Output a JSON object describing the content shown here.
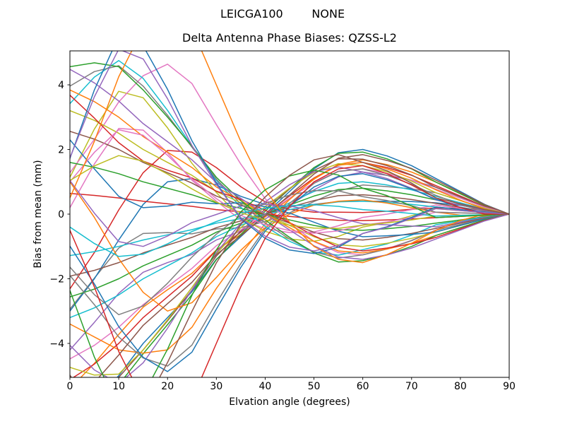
{
  "figure": {
    "suptitle": "LEICGA100        NONE",
    "background": "#ffffff"
  },
  "chart_data": {
    "type": "line",
    "title": "Delta Antenna Phase Biases: QZSS-L2",
    "xlabel": "Elvation angle (degrees)",
    "ylabel": "Bias from mean (mm)",
    "xlim": [
      0,
      90
    ],
    "ylim": [
      -5.05,
      5.05
    ],
    "xticks": [
      0,
      10,
      20,
      30,
      40,
      50,
      60,
      70,
      80,
      90
    ],
    "yticks": [
      -4,
      -2,
      0,
      2,
      4
    ],
    "grid": false,
    "legend": "none",
    "line_width": 1.5,
    "palette": [
      "#1f77b4",
      "#ff7f0e",
      "#2ca02c",
      "#d62728",
      "#9467bd",
      "#8c564b",
      "#e377c2",
      "#7f7f7f",
      "#bcbd22",
      "#17becf"
    ],
    "x": [
      0,
      5,
      10,
      15,
      20,
      25,
      30,
      35,
      40,
      45,
      50,
      55,
      60,
      65,
      70,
      75,
      80,
      85,
      90
    ],
    "series": [
      {
        "color": "#1f77b4",
        "values": [
          -6.4,
          -5.8,
          -5.0,
          -4.0,
          -3.2,
          -2.4,
          -1.4,
          -0.7,
          0,
          0.7,
          1.4,
          1.9,
          2.0,
          1.8,
          1.5,
          1.1,
          0.7,
          0.3,
          0
        ]
      },
      {
        "color": "#ff7f0e",
        "values": [
          -5.4,
          -4.62,
          -3.72,
          -2.88,
          -2.34,
          -1.83,
          -1.11,
          -0.63,
          -0.09,
          0.48,
          1.08,
          1.54,
          1.68,
          1.53,
          1.3,
          0.99,
          0.63,
          0.27,
          0
        ]
      },
      {
        "color": "#2ca02c",
        "values": [
          -6.12,
          -5.82,
          -5.28,
          -4.32,
          -3.42,
          -2.49,
          -1.41,
          -0.63,
          0.09,
          0.78,
          1.44,
          1.88,
          1.92,
          1.71,
          1.4,
          0.99,
          0.63,
          0.27,
          0
        ]
      },
      {
        "color": "#d62728",
        "values": [
          -5.12,
          -4.64,
          -4.0,
          -3.2,
          -2.56,
          -1.92,
          -1.12,
          -0.56,
          0,
          0.56,
          1.12,
          1.52,
          1.6,
          1.44,
          1.2,
          0.88,
          0.56,
          0.24,
          0
        ]
      },
      {
        "color": "#9467bd",
        "values": [
          -4.2,
          -3.35,
          -2.45,
          -1.8,
          -1.5,
          -1.25,
          -0.8,
          -0.53,
          -0.15,
          0.28,
          0.75,
          1.15,
          1.3,
          1.2,
          1.05,
          0.83,
          0.53,
          0.23,
          0
        ]
      },
      {
        "color": "#8c564b",
        "values": [
          -5.4,
          -5.35,
          -5.05,
          -4.2,
          -3.3,
          -2.35,
          -1.3,
          -0.53,
          0.15,
          0.78,
          1.35,
          1.71,
          1.7,
          1.5,
          1.21,
          0.83,
          0.53,
          0.23,
          0
        ]
      },
      {
        "color": "#e377c2",
        "values": [
          -4.48,
          -4.06,
          -3.5,
          -2.8,
          -2.24,
          -1.68,
          -0.98,
          -0.49,
          0,
          0.49,
          0.98,
          1.33,
          1.4,
          1.26,
          1.05,
          0.77,
          0.49,
          0.21,
          0
        ]
      },
      {
        "color": "#7f7f7f",
        "values": [
          -2.94,
          -1.98,
          -1.05,
          -0.6,
          -0.57,
          -0.61,
          -0.46,
          -0.42,
          -0.23,
          0.04,
          0.39,
          0.72,
          0.9,
          0.85,
          0.78,
          0.66,
          0.42,
          0.18,
          0
        ]
      },
      {
        "color": "#bcbd22",
        "values": [
          -4.74,
          -4.98,
          -4.95,
          -4.2,
          -3.27,
          -2.27,
          -1.22,
          -0.42,
          0.23,
          0.8,
          1.29,
          1.56,
          1.5,
          1.31,
          1.02,
          0.66,
          0.42,
          0.18,
          0
        ]
      },
      {
        "color": "#17becf",
        "values": [
          -3.2,
          -2.9,
          -2.5,
          -2.0,
          -1.6,
          -1.2,
          -0.7,
          -0.35,
          0,
          0.35,
          0.7,
          0.95,
          1.0,
          0.9,
          0.75,
          0.55,
          0.35,
          0.15,
          0
        ]
      },
      {
        "color": "#1f77b4",
        "values": [
          -3.0,
          -2.0,
          -0.8,
          0.3,
          1.0,
          1.1,
          0.9,
          0.55,
          0.3,
          0.25,
          0.3,
          0.39,
          0.4,
          0.4,
          0.39,
          0.35,
          0.27,
          0.15,
          0
        ]
      },
      {
        "color": "#ff7f0e",
        "values": [
          -3.4,
          -3.8,
          -4.2,
          -4.3,
          -4.2,
          -3.5,
          -2.3,
          -1.25,
          -0.3,
          0.45,
          1.1,
          1.51,
          1.6,
          1.4,
          1.11,
          0.75,
          0.43,
          0.15,
          0
        ]
      },
      {
        "color": "#2ca02c",
        "values": [
          -2.56,
          -2.32,
          -2.0,
          -1.6,
          -1.28,
          -0.96,
          -0.56,
          -0.28,
          0,
          0.28,
          0.56,
          0.76,
          0.8,
          0.72,
          0.6,
          0.44,
          0.28,
          0.12,
          0
        ]
      },
      {
        "color": "#d62728",
        "values": [
          -2.31,
          -1.19,
          0.13,
          1.28,
          1.97,
          1.92,
          1.44,
          0.85,
          0.38,
          0.15,
          0.06,
          0.06,
          0.05,
          0.09,
          0.15,
          0.19,
          0.18,
          0.12,
          0
        ]
      },
      {
        "color": "#9467bd",
        "values": [
          -4.06,
          -4.82,
          -5.25,
          -4.6,
          -3.53,
          -2.34,
          -1.19,
          -0.28,
          0.38,
          0.91,
          1.31,
          1.46,
          1.3,
          1.1,
          0.8,
          0.44,
          0.28,
          0.12,
          0
        ]
      },
      {
        "color": "#8c564b",
        "values": [
          -1.92,
          -1.74,
          -1.5,
          -1.2,
          -0.96,
          -0.72,
          -0.42,
          -0.21,
          0,
          0.21,
          0.42,
          0.57,
          0.6,
          0.54,
          0.45,
          0.33,
          0.21,
          0.09,
          0
        ]
      },
      {
        "color": "#e377c2",
        "values": [
          0.2,
          1.55,
          2.65,
          2.6,
          1.9,
          1.05,
          0.4,
          -0.18,
          -0.45,
          -0.57,
          -0.55,
          -0.36,
          -0.1,
          0,
          0.14,
          0.28,
          0.18,
          0.08,
          0
        ]
      },
      {
        "color": "#7f7f7f",
        "values": [
          -1.9,
          -2.8,
          -3.8,
          -4.45,
          -4.7,
          -4.05,
          -2.75,
          -1.53,
          -0.45,
          0.33,
          0.95,
          1.32,
          1.4,
          1.2,
          0.92,
          0.58,
          0.3,
          0.08,
          0
        ]
      },
      {
        "color": "#17becf",
        "values": [
          -1.28,
          -1.16,
          -1.0,
          -0.8,
          -0.64,
          -0.48,
          -0.28,
          -0.14,
          0,
          0.14,
          0.28,
          0.38,
          0.4,
          0.36,
          0.3,
          0.22,
          0.14,
          0.06,
          0
        ]
      },
      {
        "color": "#bcbd22",
        "values": [
          1.14,
          2.63,
          3.8,
          3.6,
          2.67,
          1.57,
          0.67,
          -0.11,
          -0.53,
          -0.77,
          -0.84,
          -0.69,
          -0.4,
          -0.26,
          -0.05,
          0.17,
          0.11,
          0.05,
          0
        ]
      },
      {
        "color": "#1f77b4",
        "values": [
          -0.99,
          -2.16,
          -3.48,
          -4.43,
          -4.87,
          -4.27,
          -2.94,
          -1.65,
          -0.53,
          0.25,
          0.84,
          1.17,
          1.25,
          1.06,
          0.78,
          0.46,
          0.21,
          0.03,
          0
        ]
      },
      {
        "color": "#d62728",
        "values": [
          0.64,
          0.58,
          0.5,
          0.4,
          0.32,
          0.24,
          0.14,
          0.07,
          0,
          -0.07,
          -0.14,
          -0.19,
          -0.2,
          -0.18,
          -0.15,
          -0.11,
          -0.07,
          -0.03,
          0
        ]
      },
      {
        "color": "#e377c2",
        "values": [
          1.28,
          2.31,
          3.47,
          4.28,
          4.64,
          4.04,
          2.77,
          1.55,
          0.48,
          -0.27,
          -0.85,
          -1.19,
          -1.26,
          -1.07,
          -0.81,
          -0.49,
          -0.24,
          -0.05,
          0
        ]
      },
      {
        "color": "#ff7f0e",
        "values": [
          1.0,
          -0.1,
          -1.38,
          -2.42,
          -3.0,
          -2.74,
          -1.96,
          -1.12,
          -0.42,
          0.0,
          0.28,
          0.4,
          0.44,
          0.34,
          0.2,
          0.06,
          -0.03,
          -0.06,
          0
        ]
      },
      {
        "color": "#2ca02c",
        "values": [
          1.6,
          1.45,
          1.25,
          1.0,
          0.8,
          0.6,
          0.35,
          0.18,
          0,
          -0.18,
          -0.35,
          -0.48,
          -0.5,
          -0.45,
          -0.38,
          -0.28,
          -0.18,
          -0.08,
          0
        ]
      },
      {
        "color": "#17becf",
        "values": [
          3.42,
          4.24,
          4.75,
          4.2,
          3.21,
          2.1,
          1.05,
          0.21,
          -0.38,
          -0.84,
          -1.17,
          -1.27,
          -1.1,
          -0.92,
          -0.65,
          -0.33,
          -0.21,
          -0.09,
          0
        ]
      },
      {
        "color": "#9467bd",
        "values": [
          1.04,
          0.03,
          -0.85,
          -1.0,
          -0.68,
          -0.26,
          -0.01,
          0.25,
          0.3,
          0.25,
          0.11,
          -0.11,
          -0.3,
          -0.33,
          -0.37,
          -0.39,
          -0.25,
          -0.11,
          0
        ]
      },
      {
        "color": "#8c564b",
        "values": [
          2.56,
          2.32,
          2.0,
          1.6,
          1.28,
          0.96,
          0.56,
          0.28,
          0,
          -0.28,
          -0.56,
          -0.76,
          -0.8,
          -0.72,
          -0.6,
          -0.44,
          -0.28,
          -0.12,
          0
        ]
      },
      {
        "color": "#7f7f7f",
        "values": [
          3.96,
          4.41,
          4.59,
          3.96,
          3.06,
          2.07,
          1.08,
          0.32,
          -0.27,
          -0.77,
          -1.17,
          -1.36,
          -1.26,
          -1.08,
          -0.82,
          -0.5,
          -0.32,
          -0.14,
          0
        ]
      },
      {
        "color": "#bcbd22",
        "values": [
          3.2,
          2.9,
          2.5,
          2.0,
          1.6,
          1.2,
          0.7,
          0.35,
          0,
          -0.35,
          -0.7,
          -0.95,
          -1.0,
          -0.9,
          -0.75,
          -0.55,
          -0.35,
          -0.15,
          0
        ]
      },
      {
        "color": "#1f77b4",
        "values": [
          2.3,
          1.4,
          0.55,
          0.2,
          0.25,
          0.37,
          0.32,
          0.35,
          0.23,
          0.03,
          -0.25,
          -0.53,
          -0.7,
          -0.67,
          -0.63,
          -0.55,
          -0.35,
          -0.15,
          0
        ]
      },
      {
        "color": "#ff7f0e",
        "values": [
          3.84,
          3.48,
          3.0,
          2.4,
          1.92,
          1.44,
          0.84,
          0.42,
          0,
          -0.42,
          -0.84,
          -1.14,
          -1.2,
          -1.08,
          -0.9,
          -0.66,
          -0.42,
          -0.18,
          0
        ]
      },
      {
        "color": "#2ca02c",
        "values": [
          4.56,
          4.68,
          4.56,
          3.84,
          3.0,
          2.1,
          1.14,
          0.42,
          -0.18,
          -0.72,
          -1.2,
          -1.48,
          -1.44,
          -1.26,
          -1.0,
          -0.66,
          -0.42,
          -0.18,
          0
        ]
      },
      {
        "color": "#d62728",
        "values": [
          3.68,
          2.97,
          2.21,
          1.64,
          1.36,
          1.12,
          0.71,
          0.46,
          0.12,
          -0.26,
          -0.67,
          -1.02,
          -1.14,
          -1.05,
          -0.92,
          -0.72,
          -0.46,
          -0.2,
          0
        ]
      },
      {
        "color": "#9467bd",
        "values": [
          4.48,
          4.06,
          3.5,
          2.8,
          2.24,
          1.68,
          0.98,
          0.49,
          0,
          -0.49,
          -0.98,
          -1.33,
          -1.4,
          -1.26,
          -1.05,
          -0.77,
          -0.49,
          -0.21,
          0
        ]
      },
      {
        "color": "#8c564b",
        "values": [
          -5.9,
          -5.21,
          -4.36,
          -3.44,
          -2.77,
          -2.11,
          -1.25,
          -0.67,
          -0.05,
          0.59,
          1.24,
          1.73,
          1.84,
          1.66,
          1.41,
          1.05,
          0.67,
          0.29,
          0
        ]
      },
      {
        "color": "#e377c2",
        "values": [
          1.0,
          1.91,
          2.61,
          2.44,
          1.82,
          1.09,
          0.48,
          -0.04,
          -0.33,
          -0.51,
          -0.59,
          -0.52,
          -0.34,
          -0.24,
          -0.1,
          0.06,
          0.04,
          0.02,
          0
        ]
      },
      {
        "color": "#7f7f7f",
        "values": [
          -1.64,
          -2.49,
          -3.11,
          -2.84,
          -2.14,
          -1.33,
          -0.62,
          -0.04,
          0.33,
          0.59,
          0.73,
          0.72,
          0.54,
          0.42,
          0.26,
          0.06,
          0.04,
          0.02,
          0
        ]
      },
      {
        "color": "#bcbd22",
        "values": [
          1.04,
          1.49,
          1.81,
          1.64,
          1.24,
          0.78,
          0.37,
          0.04,
          -0.18,
          -0.34,
          -0.43,
          -0.44,
          -0.34,
          -0.27,
          -0.18,
          -0.06,
          -0.04,
          -0.02,
          0
        ]
      },
      {
        "color": "#17becf",
        "values": [
          -0.4,
          -0.91,
          -1.31,
          -1.24,
          -0.92,
          -0.54,
          -0.23,
          0.04,
          0.18,
          0.26,
          0.29,
          0.24,
          0.14,
          0.09,
          0.02,
          -0.06,
          -0.04,
          -0.02,
          0
        ]
      },
      {
        "color": "#1f77b4",
        "values": [
          1.72,
          3.84,
          5.5,
          5.2,
          3.86,
          2.27,
          0.97,
          -0.14,
          -0.75,
          -1.11,
          -1.22,
          -1.02,
          -0.6,
          -0.39,
          -0.1,
          0.22,
          0.14,
          0.06,
          0
        ]
      },
      {
        "color": "#ff7f0e",
        "values": [
          0.5,
          2.25,
          4.25,
          5.75,
          6.5,
          5.75,
          4.0,
          2.25,
          0.75,
          -0.25,
          -1.0,
          -1.4,
          -1.5,
          -1.25,
          -0.9,
          -0.5,
          -0.2,
          0,
          0
        ]
      },
      {
        "color": "#2ca02c",
        "values": [
          -2.36,
          -4.42,
          -6.0,
          -5.6,
          -4.18,
          -2.51,
          -1.11,
          0.07,
          0.75,
          1.18,
          1.36,
          1.21,
          0.8,
          0.57,
          0.25,
          -0.11,
          -0.07,
          -0.03,
          0
        ]
      },
      {
        "color": "#d62728",
        "values": [
          -0.5,
          -2.25,
          -4.25,
          -5.75,
          -6.5,
          -5.75,
          -4.0,
          -2.25,
          -0.75,
          0.25,
          1.0,
          1.4,
          1.5,
          1.25,
          0.9,
          0.5,
          0.2,
          0,
          0
        ]
      },
      {
        "color": "#9467bd",
        "values": [
          1.74,
          3.63,
          5.1,
          4.8,
          3.57,
          2.12,
          0.92,
          -0.11,
          -0.68,
          -1.02,
          -1.14,
          -0.97,
          -0.6,
          -0.41,
          -0.13,
          0.17,
          0.11,
          0.05,
          0
        ]
      },
      {
        "color": "#8c564b",
        "values": [
          -4.98,
          -6.11,
          -6.8,
          -6.0,
          -4.59,
          -3.01,
          -1.51,
          -0.32,
          0.53,
          1.2,
          1.68,
          1.84,
          1.6,
          1.34,
          0.96,
          0.5,
          0.32,
          0.14,
          0
        ]
      }
    ]
  }
}
